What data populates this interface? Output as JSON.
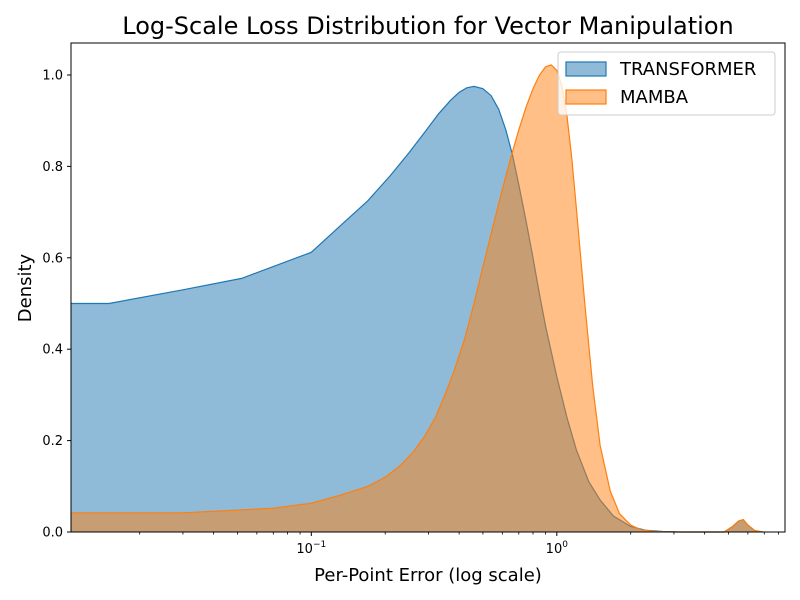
{
  "chart_data": {
    "type": "area",
    "title": "Log-Scale Loss Distribution for Vector Manipulation",
    "xlabel": "Per-Point Error (log scale)",
    "ylabel": "Density",
    "xscale": "log",
    "xlim": [
      0.0105,
      8.5
    ],
    "ylim": [
      0,
      1.07
    ],
    "xticks": [
      {
        "value": 0.1,
        "base": "10",
        "exp": "−1"
      },
      {
        "value": 1,
        "base": "10",
        "exp": "0"
      }
    ],
    "yticks": [
      {
        "value": 0.0,
        "label": "0.0"
      },
      {
        "value": 0.2,
        "label": "0.2"
      },
      {
        "value": 0.4,
        "label": "0.4"
      },
      {
        "value": 0.6,
        "label": "0.6"
      },
      {
        "value": 0.8,
        "label": "0.8"
      },
      {
        "value": 1.0,
        "label": "1.0"
      }
    ],
    "grid": false,
    "legend_position": "top-right",
    "series": [
      {
        "name": "TRANSFORMER",
        "color": "#1f77b4",
        "x": [
          0.0105,
          0.015,
          0.03,
          0.052,
          0.1,
          0.13,
          0.17,
          0.21,
          0.25,
          0.29,
          0.33,
          0.37,
          0.4,
          0.43,
          0.46,
          0.5,
          0.54,
          0.58,
          0.62,
          0.66,
          0.7,
          0.75,
          0.8,
          0.85,
          0.9,
          1.0,
          1.1,
          1.2,
          1.35,
          1.5,
          1.7,
          2.0,
          2.3,
          2.7,
          3.2,
          4.0,
          4.8,
          5.2,
          5.5,
          5.75,
          6.0,
          6.4,
          6.9
        ],
        "y": [
          0.5,
          0.5,
          0.53,
          0.555,
          0.612,
          0.668,
          0.725,
          0.78,
          0.83,
          0.875,
          0.915,
          0.945,
          0.962,
          0.972,
          0.975,
          0.97,
          0.955,
          0.925,
          0.88,
          0.825,
          0.76,
          0.68,
          0.6,
          0.52,
          0.45,
          0.34,
          0.25,
          0.18,
          0.11,
          0.07,
          0.035,
          0.012,
          0.004,
          0.001,
          0.0,
          0.0,
          0.0,
          0.012,
          0.024,
          0.027,
          0.015,
          0.003,
          0.0
        ]
      },
      {
        "name": "MAMBA",
        "color": "#ff7f0e",
        "x": [
          0.0105,
          0.015,
          0.03,
          0.05,
          0.07,
          0.1,
          0.13,
          0.17,
          0.2,
          0.23,
          0.26,
          0.29,
          0.32,
          0.35,
          0.38,
          0.42,
          0.46,
          0.5,
          0.55,
          0.6,
          0.65,
          0.7,
          0.75,
          0.8,
          0.85,
          0.9,
          0.95,
          1.0,
          1.05,
          1.1,
          1.15,
          1.2,
          1.3,
          1.4,
          1.5,
          1.65,
          1.8,
          2.0,
          2.2,
          2.5,
          3.0,
          4.0,
          4.8,
          5.2,
          5.5,
          5.75,
          6.0,
          6.4,
          6.9
        ],
        "y": [
          0.042,
          0.042,
          0.042,
          0.048,
          0.052,
          0.063,
          0.08,
          0.1,
          0.12,
          0.145,
          0.175,
          0.21,
          0.25,
          0.3,
          0.35,
          0.42,
          0.5,
          0.58,
          0.67,
          0.75,
          0.82,
          0.88,
          0.93,
          0.97,
          1.0,
          1.018,
          1.022,
          1.01,
          0.975,
          0.91,
          0.82,
          0.71,
          0.5,
          0.32,
          0.19,
          0.09,
          0.04,
          0.015,
          0.005,
          0.001,
          0.0,
          0.0,
          0.0,
          0.012,
          0.024,
          0.027,
          0.015,
          0.003,
          0.0
        ]
      }
    ]
  }
}
